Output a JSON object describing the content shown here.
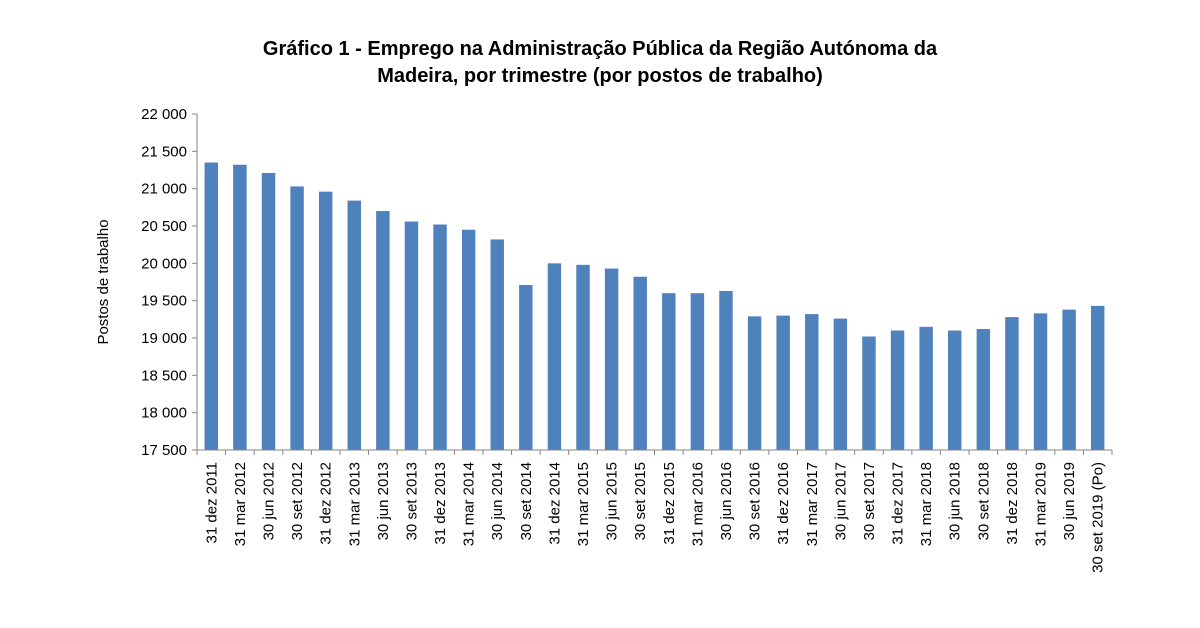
{
  "chart_data": {
    "type": "bar",
    "title_line1": "Gráfico 1 - Emprego na Administração Pública da Região Autónoma da",
    "title_line2": "Madeira, por trimestre (por postos de trabalho)",
    "xlabel": "",
    "ylabel": "Postos de trabalho",
    "ylim": [
      17500,
      22000
    ],
    "yticks": [
      17500,
      18000,
      18500,
      19000,
      19500,
      20000,
      20500,
      21000,
      21500,
      22000
    ],
    "ytick_labels": [
      "17 500",
      "18 000",
      "18 500",
      "19 000",
      "19 500",
      "20 000",
      "20 500",
      "21 000",
      "21 500",
      "22 000"
    ],
    "grid": false,
    "legend": "none",
    "bar_color": "#4F81BD",
    "categories": [
      "31 dez 2011",
      "31 mar 2012",
      "30 jun 2012",
      "30 set 2012",
      "31 dez 2012",
      "31 mar 2013",
      "30 jun 2013",
      "30 set 2013",
      "31 dez 2013",
      "31 mar 2014",
      "30 jun 2014",
      "30 set 2014",
      "31 dez 2014",
      "31 mar 2015",
      "30 jun 2015",
      "30 set 2015",
      "31 dez 2015",
      "31 mar 2016",
      "30 jun 2016",
      "30 set 2016",
      "31 dez 2016",
      "31 mar 2017",
      "30 jun 2017",
      "30 set 2017",
      "31 dez 2017",
      "31 mar 2018",
      "30 jun 2018",
      "30 set 2018",
      "31 dez 2018",
      "31 mar 2019",
      "30 jun 2019",
      "30 set 2019 (Po)"
    ],
    "values": [
      21350,
      21320,
      21210,
      21030,
      20960,
      20840,
      20700,
      20560,
      20520,
      20450,
      20320,
      19710,
      20000,
      19980,
      19930,
      19820,
      19600,
      19600,
      19630,
      19290,
      19300,
      19320,
      19260,
      19020,
      19100,
      19150,
      19100,
      19120,
      19280,
      19330,
      19380,
      19430
    ]
  }
}
